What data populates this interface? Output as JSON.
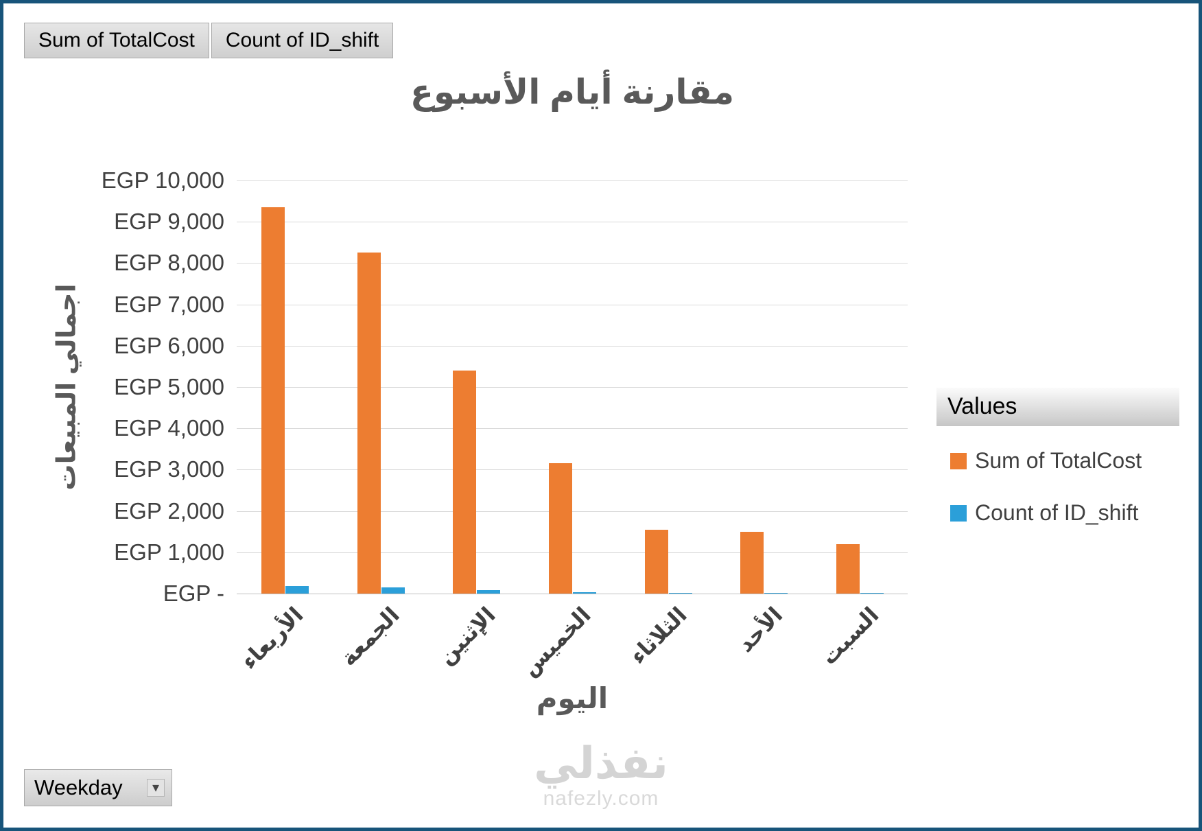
{
  "pivot_buttons": [
    {
      "label": "Sum of TotalCost"
    },
    {
      "label": "Count of ID_shift"
    }
  ],
  "chart_data": {
    "type": "bar",
    "title": "مقارنة أيام الأسبوع",
    "xlabel": "اليوم",
    "ylabel": "اجمالي المبيعات",
    "categories": [
      "الأربعاء",
      "الجمعة",
      "الإثنين",
      "الخميس",
      "الثلاثاء",
      "الأحد",
      "السبت"
    ],
    "series": [
      {
        "name": "Sum of TotalCost",
        "color": "#ED7D31",
        "values": [
          9350,
          8250,
          5400,
          3150,
          1550,
          1500,
          1200
        ]
      },
      {
        "name": "Count of ID_shift",
        "color": "#2B9FD9",
        "values": [
          180,
          150,
          90,
          40,
          15,
          10,
          10
        ]
      }
    ],
    "ylim": [
      0,
      10000
    ],
    "ytick_step": 1000,
    "ytick_labels": [
      "EGP -",
      "EGP 1,000",
      "EGP 2,000",
      "EGP 3,000",
      "EGP 4,000",
      "EGP 5,000",
      "EGP 6,000",
      "EGP 7,000",
      "EGP 8,000",
      "EGP 9,000",
      "EGP 10,000"
    ],
    "grid": true,
    "legend_title": "Values",
    "legend_position": "right"
  },
  "filter": {
    "label": "Weekday"
  },
  "watermark": {
    "title": "نفذلي",
    "subtitle": "nafezly.com"
  }
}
